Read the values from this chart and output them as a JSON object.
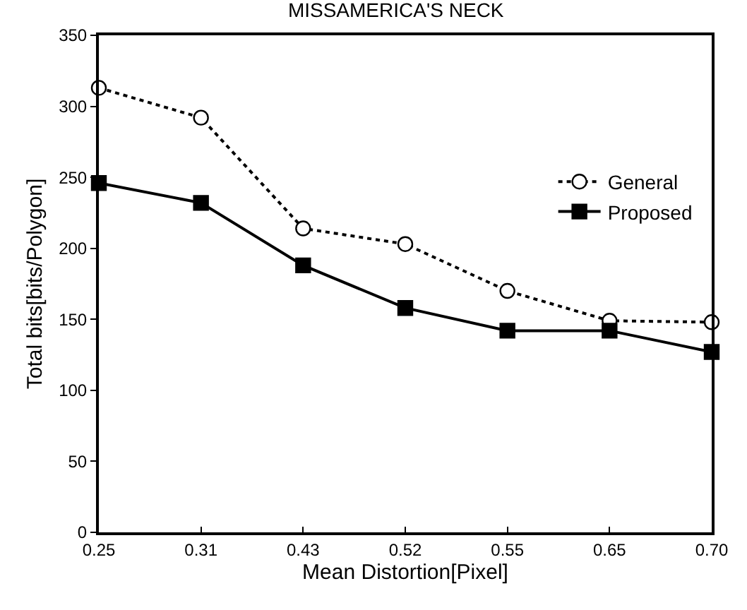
{
  "chart_data": {
    "type": "line",
    "title": "MISSAMERICA'S NECK",
    "xlabel": "Mean Distortion[Pixel]",
    "ylabel": "Total bits[bits/Polygon]",
    "categories": [
      "0.25",
      "0.31",
      "0.43",
      "0.52",
      "0.55",
      "0.65",
      "0.70"
    ],
    "series": [
      {
        "name": "General",
        "color": "#000000",
        "marker": "circle",
        "line_style": "dotted",
        "values": [
          313,
          292,
          214,
          203,
          170,
          149,
          148
        ]
      },
      {
        "name": "Proposed",
        "color": "#000000",
        "marker": "square",
        "line_style": "solid",
        "values": [
          246,
          232,
          188,
          158,
          142,
          142,
          127
        ]
      }
    ],
    "ylim": [
      0,
      350
    ],
    "yticks": [
      0,
      50,
      100,
      150,
      200,
      250,
      300,
      350
    ],
    "grid": false,
    "legend": "top right"
  }
}
